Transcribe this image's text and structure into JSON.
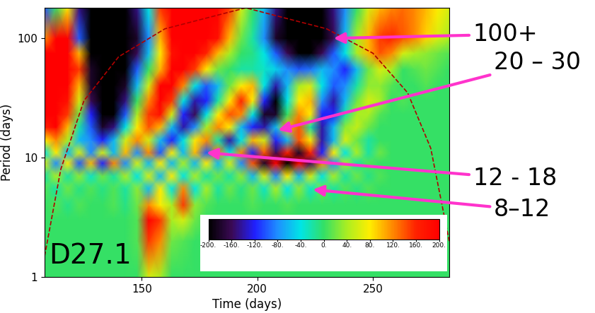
{
  "chart_data": {
    "type": "heatmap",
    "x_label": "Time (days)",
    "y_label": "Period (days)",
    "label": "D27.1",
    "log": "y",
    "xlim": [
      108,
      283
    ],
    "ylim": [
      1,
      180
    ],
    "xticks": [
      150,
      200,
      250
    ],
    "yticks": [
      1,
      10,
      100
    ],
    "x": [
      108,
      113,
      118,
      123,
      128,
      133,
      138,
      143,
      148,
      153,
      158,
      163,
      168,
      173,
      178,
      183,
      188,
      193,
      198,
      203,
      208,
      213,
      218,
      223,
      228,
      233,
      238,
      243,
      248,
      253,
      258,
      263,
      268,
      273,
      278,
      283
    ],
    "y": [
      1,
      2,
      3,
      4,
      5.5,
      7,
      9,
      11,
      14,
      18,
      23,
      30,
      40,
      55,
      75,
      100,
      180
    ],
    "cells": [
      [
        0,
        0,
        0,
        0,
        0,
        0,
        0,
        0,
        0,
        60,
        40,
        0,
        0,
        0,
        0,
        0,
        0,
        0,
        0,
        0,
        0,
        0,
        0,
        0,
        0,
        0,
        0,
        0,
        0,
        0,
        0,
        0,
        0,
        0,
        0,
        0
      ],
      [
        0,
        0,
        0,
        0,
        0,
        0,
        0,
        0,
        10,
        150,
        120,
        20,
        10,
        0,
        0,
        0,
        0,
        0,
        0,
        0,
        0,
        0,
        0,
        0,
        0,
        0,
        0,
        0,
        0,
        0,
        0,
        0,
        0,
        0,
        0,
        0
      ],
      [
        0,
        0,
        0,
        0,
        0,
        0,
        0,
        0,
        10,
        200,
        150,
        40,
        60,
        20,
        0,
        0,
        0,
        0,
        0,
        0,
        0,
        0,
        0,
        0,
        0,
        0,
        0,
        0,
        0,
        0,
        0,
        0,
        0,
        0,
        0,
        0
      ],
      [
        0,
        10,
        -10,
        10,
        0,
        0,
        10,
        -10,
        20,
        120,
        80,
        40,
        150,
        30,
        10,
        0,
        0,
        0,
        10,
        0,
        0,
        10,
        0,
        0,
        0,
        0,
        0,
        0,
        0,
        0,
        0,
        0,
        0,
        0,
        0,
        0
      ],
      [
        10,
        -20,
        20,
        -10,
        10,
        -10,
        10,
        -20,
        30,
        -60,
        80,
        -40,
        120,
        -40,
        40,
        -20,
        20,
        -10,
        20,
        -30,
        40,
        -40,
        30,
        -30,
        20,
        -20,
        10,
        -10,
        10,
        0,
        0,
        0,
        0,
        0,
        0,
        0
      ],
      [
        -20,
        40,
        -20,
        30,
        -30,
        20,
        -20,
        40,
        -40,
        60,
        -60,
        80,
        -40,
        40,
        -20,
        20,
        -20,
        30,
        -60,
        60,
        -80,
        80,
        -60,
        60,
        -40,
        40,
        -20,
        20,
        -10,
        10,
        0,
        0,
        0,
        0,
        0,
        0
      ],
      [
        60,
        -80,
        80,
        -100,
        100,
        -120,
        120,
        -80,
        60,
        -60,
        80,
        -60,
        40,
        -60,
        80,
        -60,
        60,
        -80,
        140,
        -180,
        200,
        -200,
        200,
        -160,
        120,
        -80,
        40,
        -20,
        10,
        0,
        0,
        0,
        0,
        0,
        0,
        0
      ],
      [
        -40,
        80,
        -60,
        60,
        -80,
        60,
        -60,
        100,
        -80,
        120,
        -100,
        80,
        -60,
        100,
        -100,
        120,
        -40,
        120,
        -120,
        140,
        -160,
        160,
        -180,
        160,
        -120,
        80,
        -40,
        40,
        -20,
        20,
        0,
        0,
        0,
        0,
        0,
        0
      ],
      [
        80,
        120,
        40,
        -60,
        -80,
        -120,
        -60,
        60,
        120,
        60,
        -60,
        -120,
        -40,
        80,
        120,
        -20,
        -140,
        -40,
        100,
        60,
        -120,
        -60,
        140,
        80,
        -140,
        -60,
        60,
        20,
        -20,
        0,
        0,
        0,
        0,
        0,
        0,
        0
      ],
      [
        160,
        200,
        100,
        -20,
        -100,
        -180,
        -150,
        -40,
        80,
        140,
        100,
        -60,
        -140,
        -80,
        40,
        120,
        80,
        -60,
        -120,
        -140,
        -60,
        100,
        140,
        -20,
        -140,
        -60,
        30,
        50,
        20,
        0,
        0,
        0,
        0,
        0,
        0,
        0
      ],
      [
        200,
        220,
        150,
        20,
        -120,
        -200,
        -200,
        -100,
        40,
        150,
        180,
        60,
        -120,
        -160,
        -40,
        80,
        140,
        120,
        -40,
        -180,
        -180,
        0,
        120,
        80,
        -120,
        -120,
        -20,
        40,
        40,
        10,
        0,
        0,
        0,
        0,
        0,
        0
      ],
      [
        220,
        230,
        180,
        60,
        -160,
        -230,
        -220,
        -150,
        0,
        120,
        220,
        150,
        -40,
        -140,
        -120,
        -20,
        80,
        160,
        80,
        -120,
        -200,
        -40,
        80,
        100,
        -80,
        -140,
        -60,
        20,
        60,
        40,
        0,
        10,
        0,
        0,
        0,
        0
      ],
      [
        230,
        230,
        200,
        100,
        -180,
        -230,
        -230,
        -180,
        -60,
        60,
        200,
        220,
        120,
        -40,
        -100,
        -60,
        20,
        80,
        100,
        -40,
        -140,
        -60,
        40,
        60,
        -40,
        -100,
        -80,
        -20,
        30,
        30,
        10,
        0,
        0,
        10,
        0,
        0
      ],
      [
        230,
        230,
        220,
        150,
        -180,
        -230,
        -230,
        -200,
        -100,
        0,
        100,
        200,
        200,
        150,
        80,
        20,
        0,
        -20,
        -20,
        -30,
        -50,
        -80,
        -100,
        -90,
        -60,
        -80,
        -120,
        -60,
        20,
        60,
        40,
        0,
        10,
        20,
        10,
        0
      ],
      [
        200,
        230,
        230,
        100,
        -200,
        -230,
        -230,
        -220,
        -160,
        -60,
        80,
        180,
        220,
        200,
        160,
        100,
        40,
        0,
        -10,
        -40,
        -100,
        -160,
        -200,
        -200,
        -160,
        -100,
        -40,
        40,
        100,
        140,
        120,
        60,
        40,
        30,
        20,
        10
      ],
      [
        120,
        200,
        220,
        -100,
        -220,
        -230,
        -230,
        -220,
        -180,
        -80,
        100,
        200,
        230,
        230,
        220,
        180,
        100,
        20,
        -20,
        -80,
        -180,
        -230,
        -240,
        -240,
        -220,
        -160,
        -60,
        40,
        100,
        150,
        160,
        140,
        120,
        90,
        60,
        40
      ],
      [
        -100,
        0,
        80,
        -150,
        -220,
        -220,
        -220,
        -200,
        -150,
        -40,
        150,
        220,
        230,
        230,
        220,
        200,
        150,
        60,
        0,
        -60,
        -150,
        -220,
        -220,
        -220,
        -200,
        -150,
        -80,
        0,
        60,
        100,
        120,
        130,
        120,
        100,
        80,
        60
      ]
    ],
    "colorbar_range": [
      -200,
      200
    ],
    "colorbar_ticks": [
      {
        "value": -200,
        "label": "-200."
      },
      {
        "value": -160,
        "label": "-160."
      },
      {
        "value": -120,
        "label": "-120."
      },
      {
        "value": -80,
        "label": "-80."
      },
      {
        "value": -40,
        "label": "-40."
      },
      {
        "value": 0,
        "label": "0."
      },
      {
        "value": 40,
        "label": "40."
      },
      {
        "value": 80,
        "label": "80."
      },
      {
        "value": 120,
        "label": "120."
      },
      {
        "value": 160,
        "label": "160."
      },
      {
        "value": 200,
        "label": "200."
      }
    ],
    "cone_of_influence": {
      "x": [
        108,
        115,
        125,
        140,
        160,
        195,
        230,
        250,
        265,
        275,
        283
      ],
      "values": [
        1.5,
        8,
        30,
        70,
        120,
        180,
        120,
        75,
        35,
        12,
        2
      ]
    },
    "annotations": [
      {
        "text": "100+",
        "x": 233,
        "y": 100
      },
      {
        "text": "20 – 30",
        "x": 209,
        "y": 17
      },
      {
        "text": "12 - 18",
        "x": 178,
        "y": 11
      },
      {
        "text": "8–12",
        "x": 224,
        "y": 5.4
      }
    ]
  }
}
